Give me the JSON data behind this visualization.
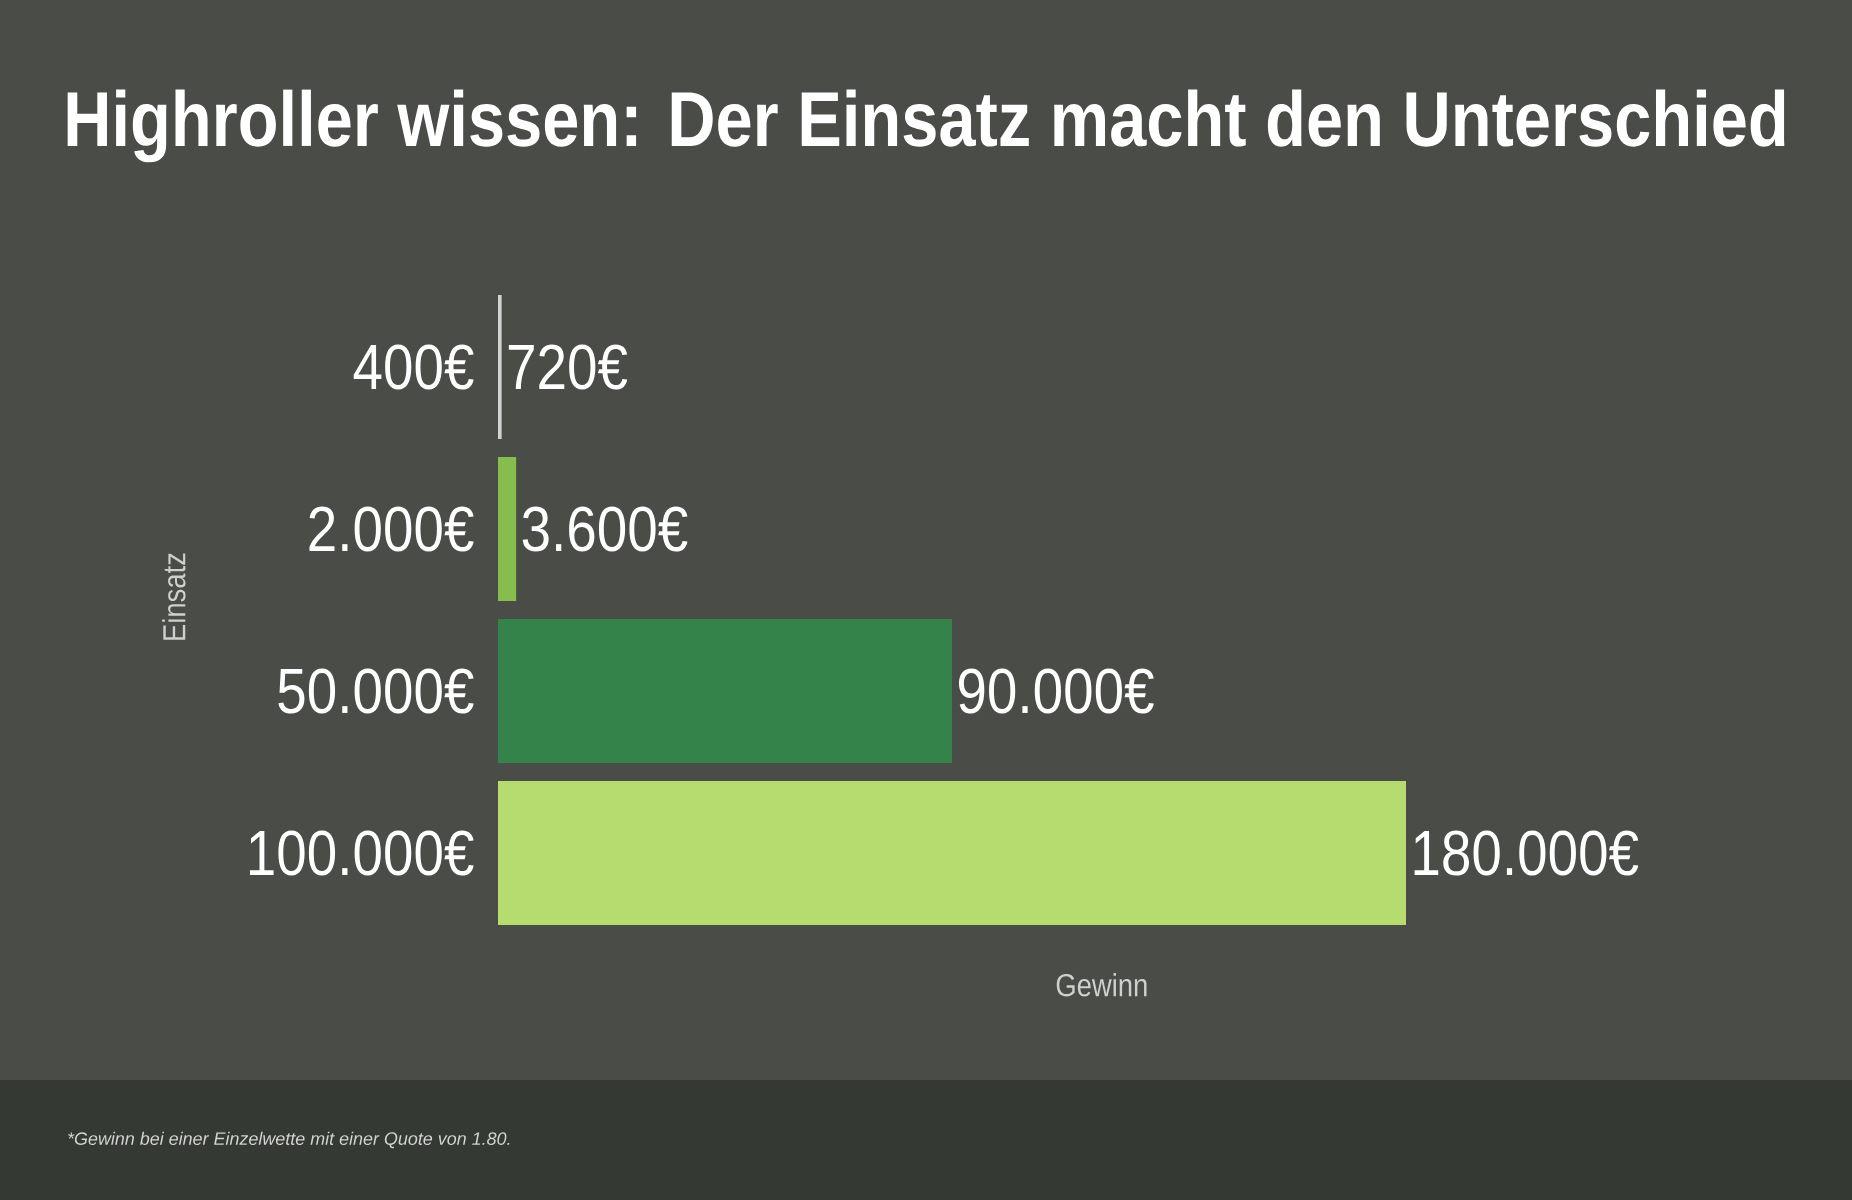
{
  "chart_data": {
    "type": "bar",
    "orientation": "horizontal",
    "title": "Highroller wissen: Der Einsatz macht den Unterschied",
    "xlabel": "Gewinn",
    "ylabel": "Einsatz",
    "categories": [
      "400€",
      "2.000€",
      "50.000€",
      "100.000€"
    ],
    "values": [
      720,
      3600,
      90000,
      180000
    ],
    "colors": [
      "#d2d2d2",
      "#86bd4e",
      "#33834a",
      "#b6dc70"
    ],
    "value_labels": [
      "720€",
      "3.600€",
      "90.000€",
      "180.000€"
    ],
    "annotations": [
      "*Gewinn bei einer Einzelwette mit einer Quote von 1.80."
    ]
  }
}
